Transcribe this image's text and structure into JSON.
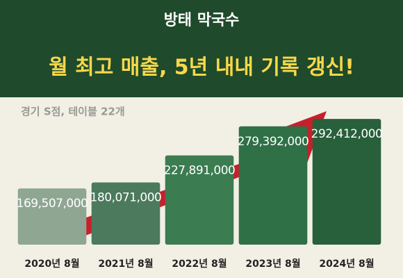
{
  "logo": "방태 막국수",
  "chart_data": {
    "type": "bar",
    "title": "월 최고 매출, 5년 내내 기록 갱신!",
    "subtitle": "경기 S점, 테이블 22개",
    "categories": [
      "2020년 8월",
      "2021년 8월",
      "2022년 8월",
      "2023년 8월",
      "2024년 8월"
    ],
    "values": [
      169507000,
      180071000,
      227891000,
      279392000,
      292412000
    ],
    "value_labels": [
      "169,507,000",
      "180,071,000",
      "227,891,000",
      "279,392,000",
      "292,412,000"
    ],
    "colors": [
      "#8fa693",
      "#4b7a5c",
      "#3b7c51",
      "#2f7046",
      "#27603a"
    ],
    "ylim": [
      70000000,
      300000000
    ]
  }
}
